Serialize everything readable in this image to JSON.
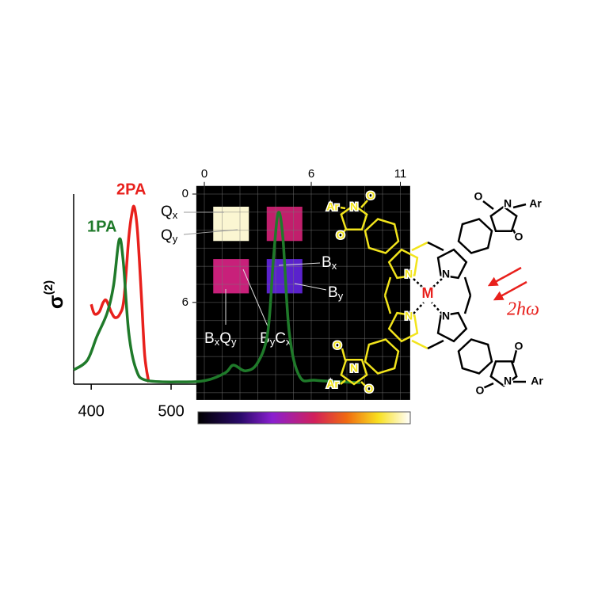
{
  "chart_data": [
    {
      "type": "line",
      "xlim": [
        378,
        737
      ],
      "ylim": [
        0,
        1
      ],
      "xticks": [
        400,
        500
      ],
      "ylabel": {
        "text": "σ",
        "sup": "(2)"
      },
      "series": [
        {
          "name": "2PA",
          "color": "#e8201c",
          "x": [
            400,
            404,
            410,
            415,
            419,
            425,
            430,
            436,
            441,
            447,
            451,
            454,
            458,
            463,
            467,
            472
          ],
          "values": [
            0.42,
            0.37,
            0.38,
            0.43,
            0.44,
            0.38,
            0.35,
            0.37,
            0.45,
            0.77,
            0.9,
            0.93,
            0.8,
            0.45,
            0.15,
            0.01
          ]
        },
        {
          "name": "1PA",
          "color": "#1f7a2a",
          "x": [
            378,
            395,
            407,
            420,
            428,
            435,
            440,
            447,
            456,
            469,
            514,
            544,
            568,
            578,
            593,
            608,
            621,
            628,
            634,
            640,
            648,
            661,
            682,
            737
          ],
          "values": [
            0.075,
            0.125,
            0.25,
            0.375,
            0.52,
            0.76,
            0.65,
            0.27,
            0.08,
            0.02,
            0.012,
            0.02,
            0.06,
            0.1,
            0.07,
            0.11,
            0.27,
            0.65,
            0.9,
            0.77,
            0.27,
            0.04,
            0.02,
            0.008
          ]
        }
      ]
    },
    {
      "type": "heatmap",
      "xlim": [
        -0.45,
        11.55
      ],
      "ylim": [
        -0.45,
        11.4
      ],
      "xticks": [
        0,
        6,
        11
      ],
      "yticks": [
        0,
        6
      ],
      "cells": [
        {
          "x": [
            0.5,
            2.5
          ],
          "y": [
            0.7,
            2.6
          ],
          "color": "#fbf6d2"
        },
        {
          "x": [
            3.5,
            5.5
          ],
          "y": [
            0.7,
            2.6
          ],
          "color": "#c11f6c"
        },
        {
          "x": [
            0.5,
            2.5
          ],
          "y": [
            3.6,
            5.5
          ],
          "color": "#c8207a"
        },
        {
          "x": [
            3.5,
            5.5
          ],
          "y": [
            3.6,
            5.5
          ],
          "color": "#5a22cc"
        }
      ],
      "annotations": [
        [
          [
            "Q",
            "x"
          ]
        ],
        [
          [
            "Q",
            "y"
          ]
        ],
        [
          [
            "B",
            "x"
          ]
        ],
        [
          [
            "B",
            "y"
          ]
        ],
        [
          [
            "B",
            "x"
          ],
          [
            "Q",
            "y"
          ]
        ],
        [
          [
            "B",
            "y"
          ],
          [
            "C",
            "x"
          ]
        ]
      ]
    }
  ],
  "molecule": {
    "labels": [
      "Ar",
      "N",
      "O",
      "O",
      "O",
      "N",
      "Ar",
      "O",
      "N",
      "N",
      "O",
      "N",
      "Ar",
      "O",
      "O",
      "N",
      "Ar",
      "O",
      "N",
      "N",
      "M"
    ],
    "light": "2hω"
  }
}
